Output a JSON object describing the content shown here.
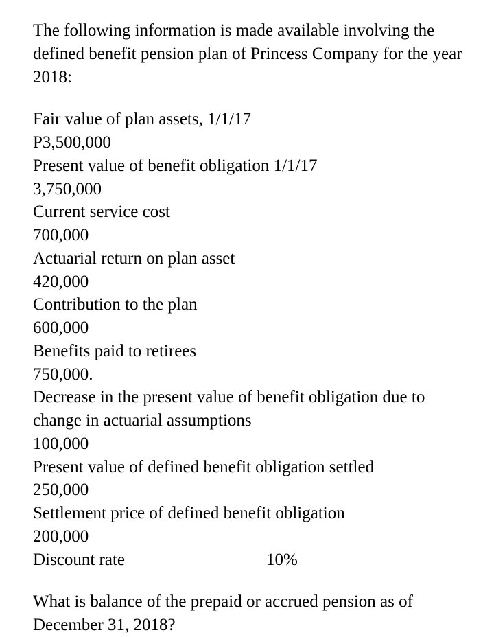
{
  "intro": "The following information is made available involving the defined benefit pension plan of Princess Company for the year 2018:",
  "items": {
    "fair_value_label": "Fair value of plan assets, 1/1/17",
    "fair_value_amount": "P3,500,000",
    "pv_obligation_label": "Present value of benefit obligation 1/1/17",
    "pv_obligation_amount": "3,750,000",
    "service_cost_label": "Current service cost",
    "service_cost_amount": "700,000",
    "actuarial_return_label": "Actuarial return on plan asset",
    "actuarial_return_amount": "420,000",
    "contribution_label": "Contribution to the plan",
    "contribution_amount": "600,000",
    "benefits_paid_label": "Benefits paid to retirees",
    "benefits_paid_amount": "750,000.",
    "decrease_pv_label": "Decrease in the present value of benefit obligation due to change in actuarial assumptions",
    "decrease_pv_amount": "100,000",
    "pv_settled_label": "Present value of defined benefit obligation settled",
    "pv_settled_amount": "250,000",
    "settlement_price_label": "Settlement price of defined benefit obligation",
    "settlement_price_amount": "200,000",
    "discount_rate_label": "Discount rate",
    "discount_rate_value": "10%"
  },
  "question": "What is balance of the prepaid or accrued pension as of December 31, 2018?"
}
